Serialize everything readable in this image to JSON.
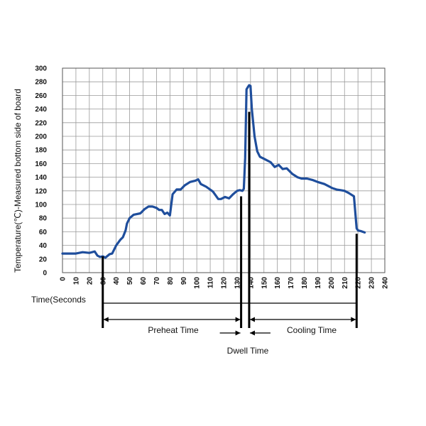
{
  "chart_data": {
    "type": "line",
    "title": "",
    "ylabel": "Temperature(℃)-Measured bottom side of board",
    "xlabel": "Time(Seconds",
    "xlim": [
      0,
      240
    ],
    "ylim": [
      0,
      300
    ],
    "grid": true,
    "line_color": "#1f4e9c",
    "xticks": [
      "0",
      "10",
      "20",
      "30",
      "40",
      "50",
      "60",
      "70",
      "80",
      "90",
      "100",
      "110",
      "120",
      "130",
      "140",
      "150",
      "160",
      "170",
      "180",
      "190",
      "200",
      "210",
      "220",
      "230",
      "240"
    ],
    "yticks": [
      "0",
      "20",
      "40",
      "60",
      "80",
      "100",
      "120",
      "140",
      "160",
      "180",
      "200",
      "220",
      "240",
      "260",
      "280",
      "300"
    ],
    "series": [
      {
        "x": [
          0,
          5,
          10,
          15,
          20,
          24,
          26,
          28,
          30,
          32,
          35,
          37,
          40,
          43,
          45,
          47,
          48,
          50,
          53,
          58,
          61,
          64,
          67,
          70,
          72,
          74,
          76,
          78,
          80,
          82,
          85,
          88,
          91,
          95,
          99,
          101,
          103,
          107,
          112,
          116,
          118,
          121,
          124,
          127,
          130,
          132,
          134,
          135,
          136,
          137,
          138,
          139,
          140,
          141,
          143,
          145,
          147,
          149,
          151,
          155,
          158,
          161,
          164,
          167,
          171,
          175,
          178,
          182,
          186,
          190,
          195,
          198,
          201,
          204,
          207,
          210,
          213,
          217,
          219,
          220,
          222,
          225
        ],
        "y": [
          28,
          28,
          28,
          30,
          29,
          31,
          25,
          23,
          24,
          22,
          27,
          28,
          40,
          48,
          52,
          62,
          72,
          80,
          85,
          87,
          93,
          97,
          97,
          95,
          92,
          92,
          86,
          88,
          84,
          115,
          122,
          122,
          128,
          133,
          135,
          137,
          130,
          126,
          119,
          108,
          108,
          111,
          109,
          115,
          120,
          121,
          120,
          123,
          168,
          269,
          272,
          275,
          274,
          240,
          200,
          178,
          170,
          168,
          166,
          162,
          155,
          158,
          152,
          153,
          145,
          140,
          138,
          138,
          136,
          133,
          130,
          127,
          124,
          122,
          121,
          120,
          117,
          112,
          65,
          62,
          61,
          59
        ]
      }
    ],
    "annotations": {
      "preheat": "Preheat Time",
      "dwell": "Dwell Time",
      "cooling": "Cooling Time"
    },
    "phase_bounds": {
      "preheat_start": 30,
      "preheat_end": 133,
      "dwell_start": 133,
      "dwell_end": 139,
      "cooling_start": 139,
      "cooling_end": 219
    }
  }
}
